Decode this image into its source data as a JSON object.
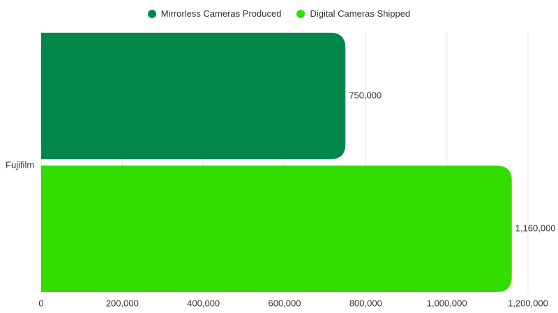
{
  "chart_data": {
    "type": "bar",
    "orientation": "horizontal",
    "categories": [
      "Fujifilm"
    ],
    "series": [
      {
        "name": "Mirrorless Cameras Produced",
        "values": [
          750000
        ],
        "color": "#02874a"
      },
      {
        "name": "Digital Cameras Shipped",
        "values": [
          1160000
        ],
        "color": "#33dd00"
      }
    ],
    "data_labels": [
      "750,000",
      "1,160,000"
    ],
    "xlim": [
      0,
      1200000
    ],
    "x_ticks": [
      0,
      200000,
      400000,
      600000,
      800000,
      1000000,
      1200000
    ],
    "x_tick_labels": [
      "0",
      "200,000",
      "400,000",
      "600,000",
      "800,000",
      "1,000,000",
      "1,200,000"
    ],
    "grid": true,
    "legend_position": "top-center",
    "title": "",
    "xlabel": "",
    "ylabel": ""
  }
}
